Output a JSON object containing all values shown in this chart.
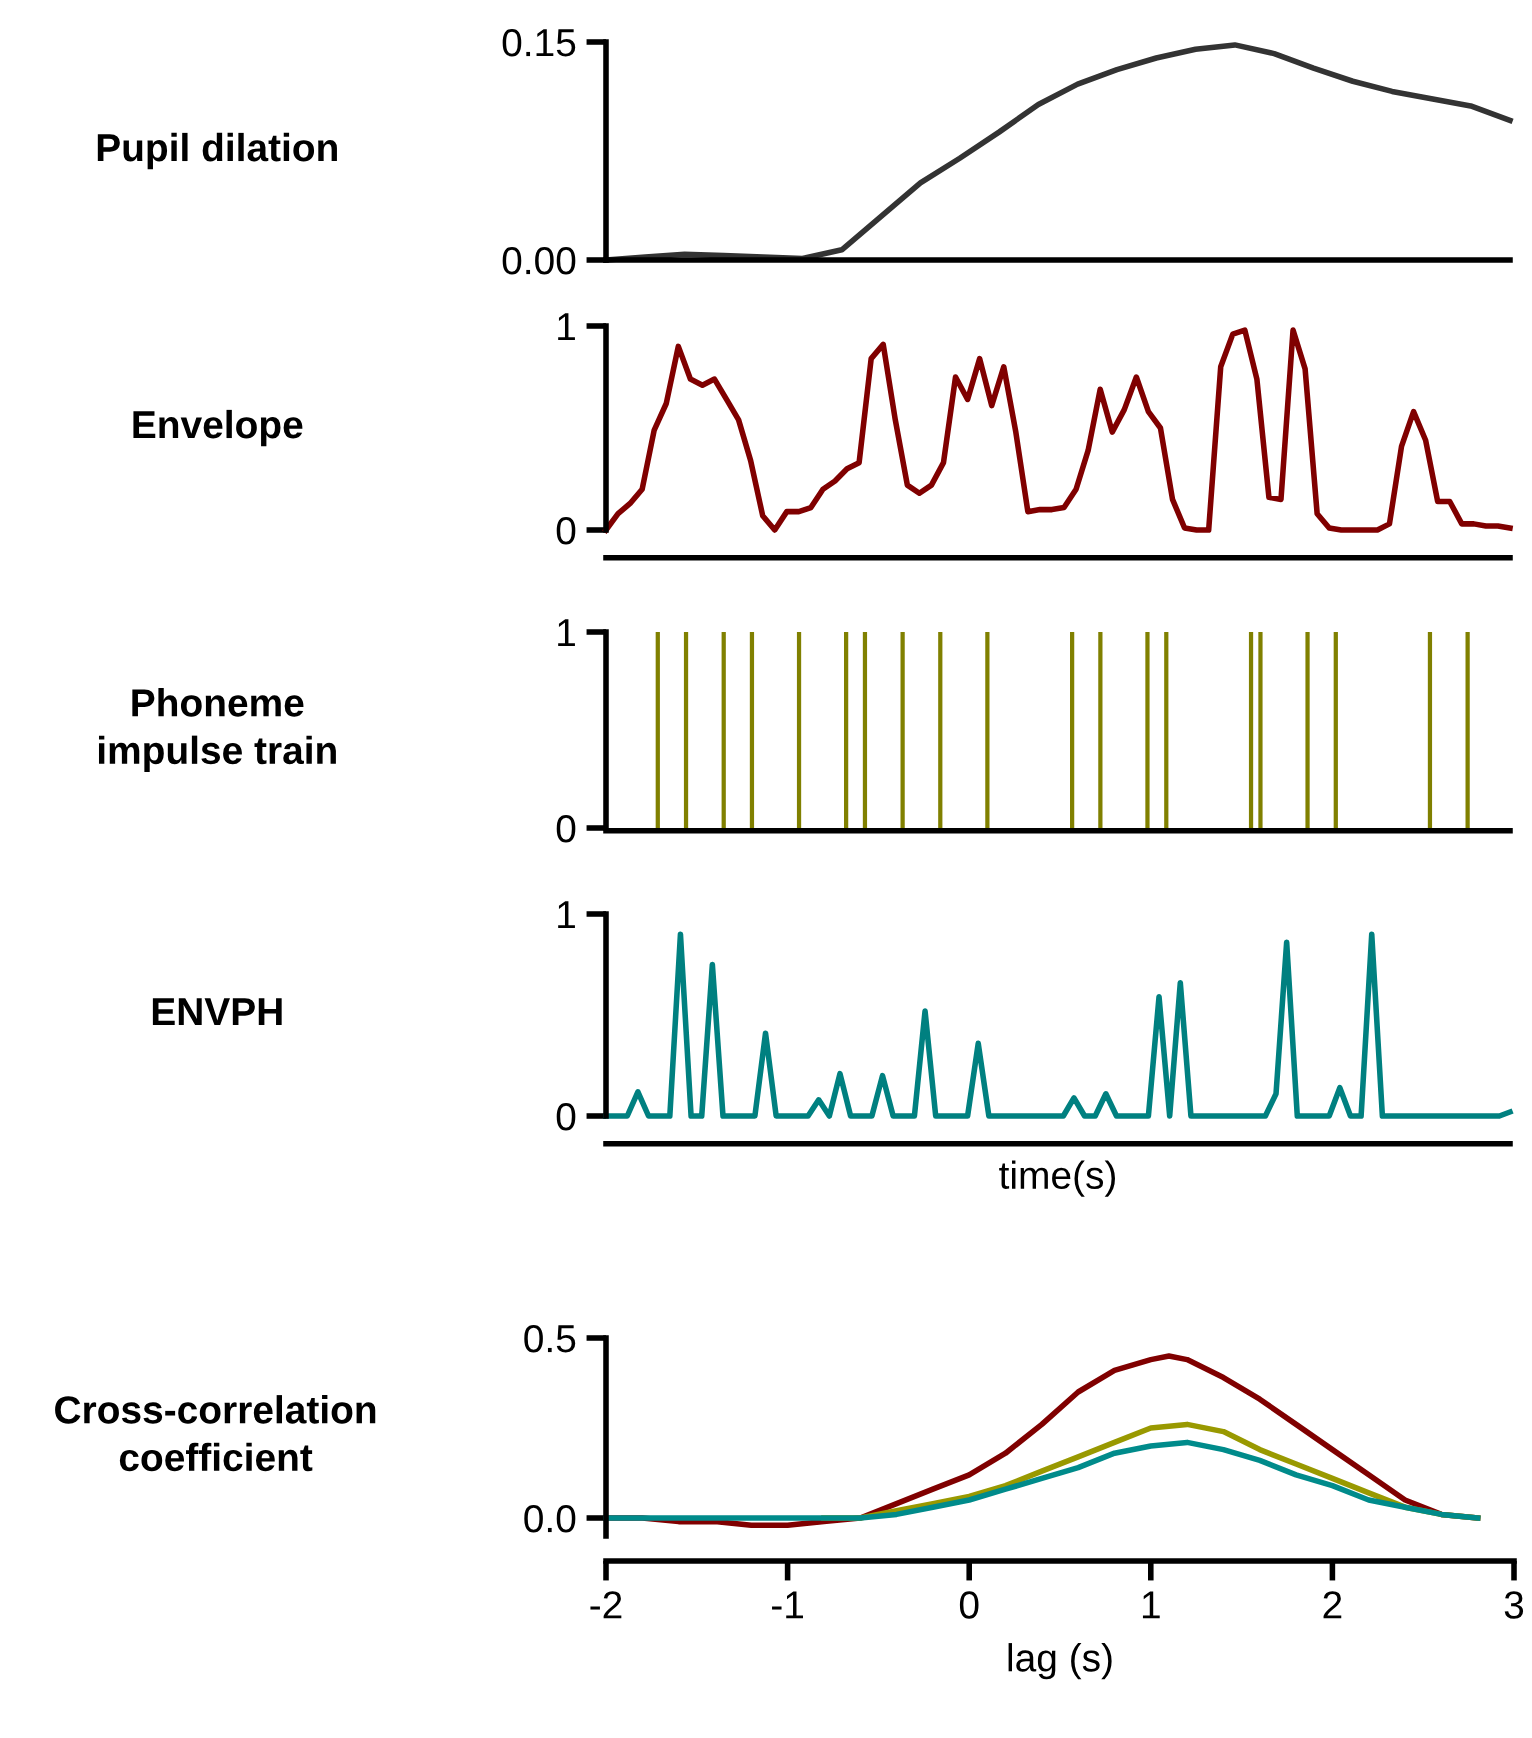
{
  "chart_data": [
    {
      "type": "line",
      "ylabel": "Pupil dilation",
      "categories": [
        null,
        null,
        null,
        null,
        null,
        null,
        null,
        null,
        null,
        null,
        null,
        null,
        null,
        null,
        null,
        null,
        null,
        null,
        null,
        null,
        null,
        null,
        null,
        null
      ],
      "tick_labels": "y",
      "ylim": [
        0,
        0.15
      ],
      "yticks": [
        {
          "value": 0,
          "label": "0.00"
        },
        0.15
      ],
      "series": [
        {
          "color": "#333333",
          "values": [
            0,
            0.002,
            0.004,
            0.003,
            0.002,
            0.001,
            0.007,
            0.03,
            0.053,
            0.07,
            0.088,
            0.107,
            0.121,
            0.131,
            0.139,
            0.145,
            0.148,
            0.142,
            0.132,
            0.123,
            0.116,
            0.111,
            0.106,
            0.096
          ]
        }
      ]
    },
    {
      "type": "line",
      "ylabel": "Envelope",
      "categories": [
        null,
        null,
        null,
        null,
        null,
        null,
        null,
        null,
        null,
        null,
        null,
        null,
        null,
        null,
        null,
        null,
        null,
        null,
        null,
        null,
        null,
        null,
        null,
        null,
        null,
        null,
        null,
        null,
        null,
        null,
        null,
        null,
        null,
        null,
        null,
        null,
        null,
        null,
        null,
        null,
        null,
        null,
        null,
        null,
        null,
        null,
        null,
        null,
        null,
        null,
        null,
        null,
        null,
        null,
        null,
        null,
        null,
        null,
        null,
        null,
        null,
        null,
        null,
        null,
        null,
        null,
        null,
        null,
        null,
        null,
        null,
        null,
        null,
        null,
        null,
        null
      ],
      "tick_labels": "y",
      "ylim": [
        0,
        1
      ],
      "yticks": [
        0,
        1
      ],
      "series": [
        {
          "color": "#800000",
          "values": [
            0,
            0.08,
            0.13,
            0.2,
            0.49,
            0.62,
            0.9,
            0.74,
            0.71,
            0.74,
            0.64,
            0.54,
            0.34,
            0.07,
            0,
            0.09,
            0.09,
            0.11,
            0.2,
            0.24,
            0.3,
            0.33,
            0.84,
            0.91,
            0.54,
            0.22,
            0.18,
            0.22,
            0.33,
            0.75,
            0.64,
            0.84,
            0.61,
            0.8,
            0.48,
            0.09,
            0.1,
            0.1,
            0.11,
            0.2,
            0.39,
            0.69,
            0.48,
            0.59,
            0.75,
            0.58,
            0.5,
            0.15,
            0.01,
            0,
            0,
            0.8,
            0.96,
            0.98,
            0.74,
            0.16,
            0.15,
            0.98,
            0.79,
            0.08,
            0.01,
            0,
            0,
            0,
            0,
            0.03,
            0.41,
            0.58,
            0.44,
            0.14,
            0.14,
            0.03,
            0.03,
            0.02,
            0.02,
            0.01
          ]
        }
      ]
    },
    {
      "type": "bar",
      "ylabel": "Phoneme\nimpulse train",
      "categories": [
        null,
        null,
        null,
        null,
        null,
        null,
        null,
        null,
        null,
        null,
        null,
        null,
        null,
        null,
        null,
        null,
        null,
        null,
        null,
        null,
        null,
        null,
        null,
        null,
        null,
        null,
        null,
        null,
        null,
        null,
        null,
        null,
        null,
        null,
        null,
        null,
        null,
        null,
        null,
        null,
        null,
        null,
        null,
        null,
        null,
        null,
        null,
        null,
        null,
        null,
        null,
        null,
        null,
        null,
        null,
        null,
        null,
        null,
        null,
        null,
        null,
        null,
        null,
        null,
        null,
        null,
        null,
        null,
        null,
        null,
        null,
        null,
        null,
        null,
        null,
        null,
        null,
        null,
        null,
        null,
        null,
        null,
        null,
        null,
        null,
        null,
        null,
        null,
        null,
        null,
        null,
        null,
        null,
        null,
        null,
        null
      ],
      "tick_labels": "y",
      "ylim": [
        0,
        1
      ],
      "yticks": [
        0,
        1
      ],
      "color": "#808000",
      "values": [
        0,
        0,
        0,
        0,
        0,
        1,
        0,
        0,
        1,
        0,
        0,
        0,
        1,
        0,
        0,
        1,
        0,
        0,
        0,
        0,
        1,
        0,
        0,
        0,
        0,
        1,
        0,
        1,
        0,
        0,
        0,
        1,
        0,
        0,
        0,
        1,
        0,
        0,
        0,
        0,
        1,
        0,
        0,
        0,
        0,
        0,
        0,
        0,
        0,
        1,
        0,
        0,
        1,
        0,
        0,
        0,
        0,
        1,
        0,
        1,
        0,
        0,
        0,
        0,
        0,
        0,
        0,
        0,
        1,
        1,
        0,
        0,
        0,
        0,
        1,
        0,
        0,
        1,
        0,
        0,
        0,
        0,
        0,
        0,
        0,
        0,
        0,
        1,
        0,
        0,
        0,
        1,
        0,
        0,
        0,
        0
      ]
    },
    {
      "type": "line",
      "ylabel": "ENVPH",
      "xlabel": "time(s)",
      "categories": [
        null,
        null,
        null,
        null,
        null,
        null,
        null,
        null,
        null,
        null,
        null,
        null,
        null,
        null,
        null,
        null,
        null,
        null,
        null,
        null,
        null,
        null,
        null,
        null,
        null,
        null,
        null,
        null,
        null,
        null,
        null,
        null,
        null,
        null,
        null,
        null,
        null,
        null,
        null,
        null,
        null,
        null,
        null,
        null,
        null,
        null,
        null,
        null,
        null,
        null,
        null,
        null,
        null,
        null,
        null,
        null,
        null,
        null,
        null,
        null,
        null,
        null,
        null,
        null,
        null,
        null,
        null,
        null,
        null,
        null,
        null,
        null,
        null,
        null,
        null,
        null,
        null,
        null,
        null,
        null,
        null,
        null,
        null,
        null,
        null,
        null
      ],
      "tick_labels": "y",
      "ylim": [
        0,
        1
      ],
      "yticks": [
        0,
        1
      ],
      "series": [
        {
          "color": "#008080",
          "values": [
            0,
            0,
            0,
            0.12,
            0,
            0,
            0,
            0.9,
            0,
            0,
            0.75,
            0,
            0,
            0,
            0,
            0.41,
            0,
            0,
            0,
            0,
            0.08,
            0,
            0.21,
            0,
            0,
            0,
            0.2,
            0,
            0,
            0,
            0.52,
            0,
            0,
            0,
            0,
            0.36,
            0,
            0,
            0,
            0,
            0,
            0,
            0,
            0,
            0.09,
            0,
            0,
            0.11,
            0,
            0,
            0,
            0,
            0.59,
            0,
            0.66,
            0,
            0,
            0,
            0,
            0,
            0,
            0,
            0,
            0.11,
            0.86,
            0,
            0,
            0,
            0,
            0.14,
            0,
            0,
            0.9,
            0,
            0,
            0,
            0,
            0,
            0,
            0,
            0,
            0,
            0,
            0,
            0,
            0.02
          ]
        }
      ]
    },
    {
      "type": "line",
      "ylabel": "Cross-correlation\ncoefficient",
      "xlabel": "lag (s)",
      "xlim": [
        -2,
        3
      ],
      "xticks": [
        {
          "value": -2,
          "label": "-2"
        },
        {
          "value": -1,
          "label": "-1"
        },
        0,
        1,
        2,
        3
      ],
      "ylim": [
        -0.05,
        0.5
      ],
      "yticks": [
        {
          "value": 0,
          "label": "0.0"
        },
        0.5
      ],
      "series": [
        {
          "color": "#800000",
          "x": [
            -2,
            -1.8,
            -1.6,
            -1.4,
            -1.2,
            -1,
            -0.8,
            -0.6,
            -0.4,
            -0.2,
            0,
            0.2,
            0.4,
            0.6,
            0.8,
            1,
            1.1,
            1.2,
            1.4,
            1.6,
            1.8,
            2,
            2.2,
            2.4,
            2.6,
            2.8
          ],
          "values": [
            0,
            0,
            -0.01,
            -0.01,
            -0.02,
            -0.02,
            -0.01,
            0,
            0.04,
            0.08,
            0.12,
            0.18,
            0.26,
            0.35,
            0.41,
            0.44,
            0.45,
            0.44,
            0.39,
            0.33,
            0.26,
            0.19,
            0.12,
            0.05,
            0.01,
            0
          ]
        },
        {
          "color": "#999900",
          "x": [
            -0.8,
            -0.6,
            -0.4,
            -0.2,
            0,
            0.2,
            0.4,
            0.6,
            0.8,
            1,
            1.2,
            1.4,
            1.6,
            1.8,
            2,
            2.2,
            2.4,
            2.6,
            2.8
          ],
          "values": [
            0,
            0,
            0.02,
            0.04,
            0.06,
            0.09,
            0.13,
            0.17,
            0.21,
            0.25,
            0.26,
            0.24,
            0.19,
            0.15,
            0.11,
            0.07,
            0.03,
            0.01,
            0
          ]
        },
        {
          "color": "#008b8b",
          "x": [
            -2,
            -1.8,
            -1.6,
            -1.4,
            -1.2,
            -1,
            -0.8,
            -0.6,
            -0.4,
            -0.2,
            0,
            0.2,
            0.4,
            0.6,
            0.8,
            1,
            1.2,
            1.4,
            1.6,
            1.8,
            2,
            2.2,
            2.4,
            2.6,
            2.8
          ],
          "values": [
            0,
            0,
            0,
            0,
            0,
            0,
            0,
            0,
            0.01,
            0.03,
            0.05,
            0.08,
            0.11,
            0.14,
            0.18,
            0.2,
            0.21,
            0.19,
            0.16,
            0.12,
            0.09,
            0.05,
            0.03,
            0.01,
            0
          ]
        }
      ]
    }
  ]
}
